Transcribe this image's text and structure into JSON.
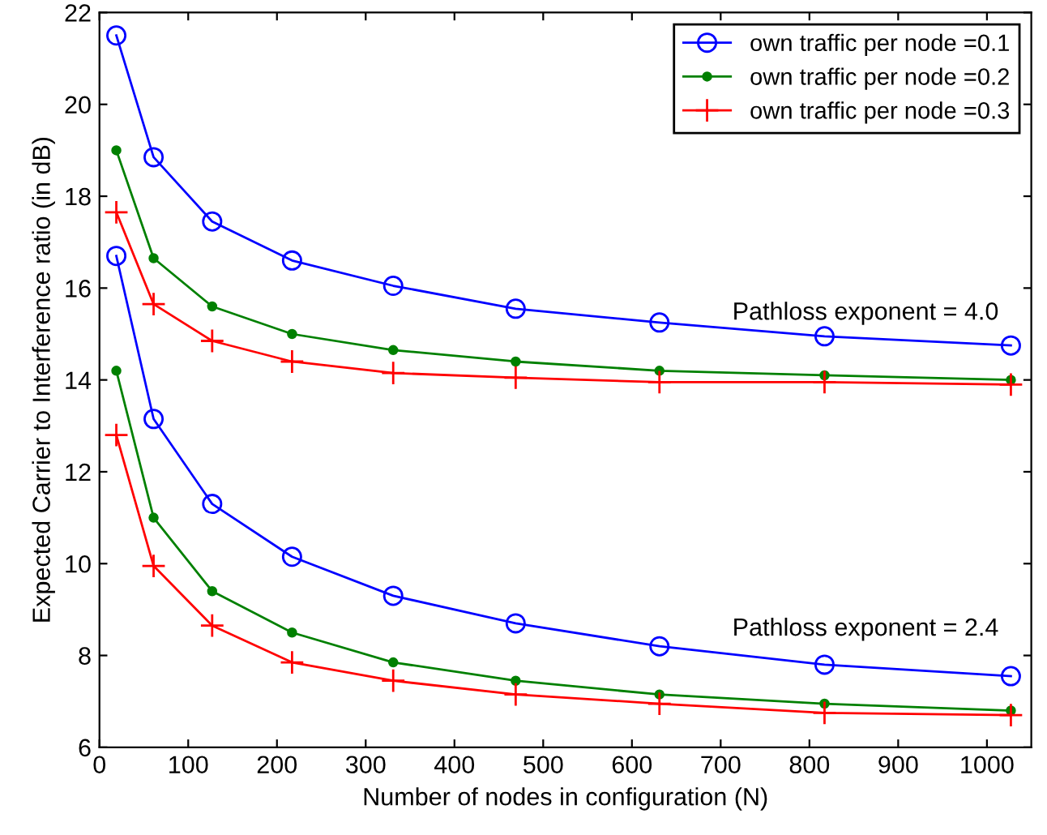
{
  "chart_data": {
    "type": "line",
    "xlabel": "Number of nodes in configuration (N)",
    "ylabel": "Expected Carrier to Interference ratio (in dB)",
    "x": [
      19,
      61,
      127,
      217,
      331,
      469,
      631,
      817,
      1027
    ],
    "xlim": [
      0,
      1050
    ],
    "xticks": [
      0,
      100,
      200,
      300,
      400,
      500,
      600,
      700,
      800,
      900,
      1000
    ],
    "ylim": [
      6,
      22
    ],
    "yticks": [
      6,
      8,
      10,
      12,
      14,
      16,
      18,
      20,
      22
    ],
    "grid": false,
    "legend": "top right",
    "line_style": "solid",
    "series": [
      {
        "name": "own traffic per node =0.1",
        "color": "#0000ff",
        "marker": "circle",
        "values": [
          21.5,
          18.85,
          17.45,
          16.6,
          16.05,
          15.55,
          15.25,
          14.95,
          14.75
        ]
      },
      {
        "name": "own traffic per node =0.2",
        "color": "#008000",
        "marker": "point",
        "values": [
          19.0,
          16.65,
          15.6,
          15.0,
          14.65,
          14.4,
          14.2,
          14.1,
          14.0
        ]
      },
      {
        "name": "own traffic per node =0.3",
        "color": "#ff0000",
        "marker": "cross",
        "values": [
          17.65,
          15.65,
          14.85,
          14.4,
          14.15,
          14.05,
          13.95,
          13.95,
          13.9
        ]
      },
      {
        "color": "#0000ff",
        "marker": "circle",
        "values": [
          16.7,
          13.15,
          11.3,
          10.15,
          9.3,
          8.7,
          8.2,
          7.8,
          7.55
        ]
      },
      {
        "color": "#008000",
        "marker": "point",
        "values": [
          14.2,
          11.0,
          9.4,
          8.5,
          7.85,
          7.45,
          7.15,
          6.95,
          6.8
        ]
      },
      {
        "color": "#ff0000",
        "marker": "cross",
        "values": [
          12.8,
          9.95,
          8.65,
          7.85,
          7.45,
          7.15,
          6.95,
          6.75,
          6.7
        ]
      }
    ],
    "annotations": [
      "Pathloss exponent = 4.0",
      "Pathloss exponent = 2.4"
    ]
  }
}
